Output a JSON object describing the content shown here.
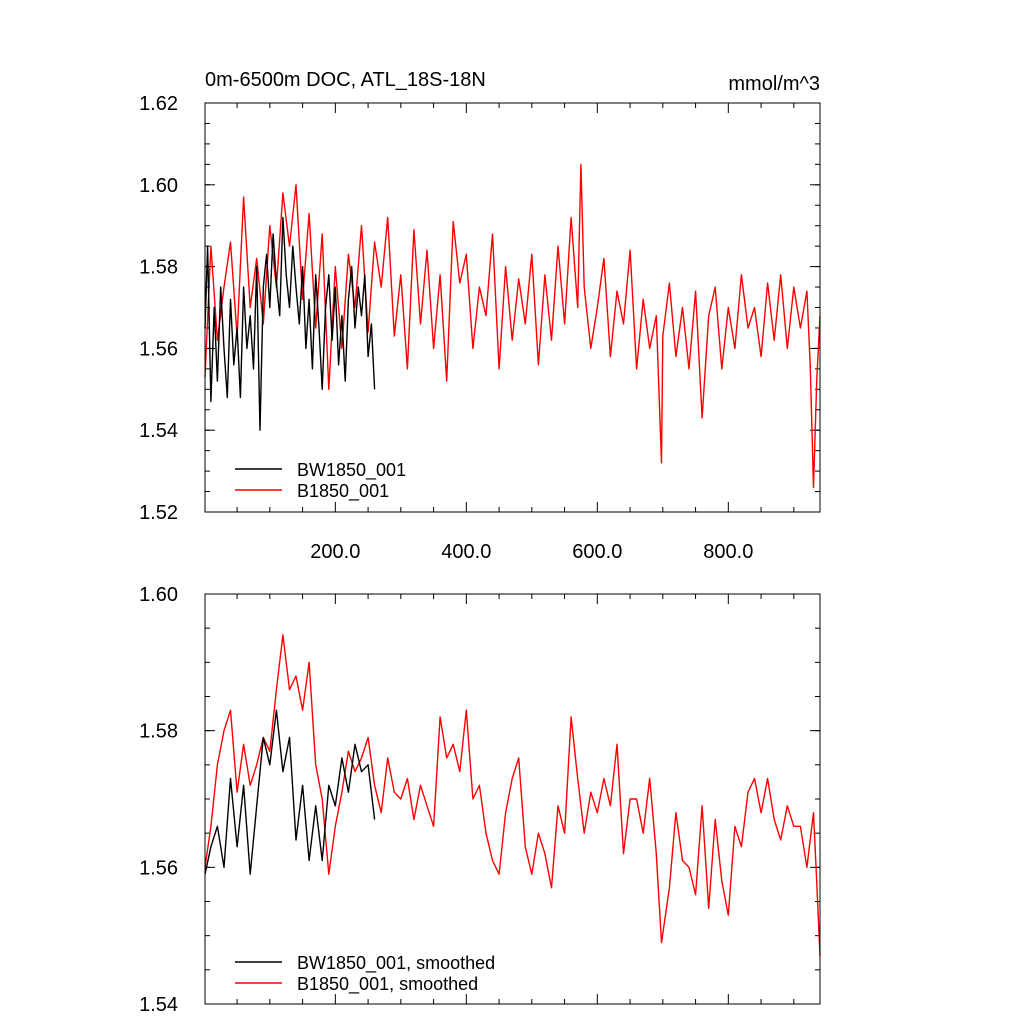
{
  "chart_data": [
    {
      "type": "line",
      "title": "0m-6500m DOC, ATL_18S-18N",
      "units": "mmol/m^3",
      "xlim": [
        1,
        940
      ],
      "ylim": [
        1.52,
        1.62
      ],
      "xticks": [
        200,
        400,
        600,
        800
      ],
      "xtick_labels": [
        "200.0",
        "400.0",
        "600.0",
        "800.0"
      ],
      "yticks": [
        1.52,
        1.54,
        1.56,
        1.58,
        1.6,
        1.62
      ],
      "ytick_labels": [
        "1.52",
        "1.54",
        "1.56",
        "1.58",
        "1.60",
        "1.62"
      ],
      "legend": "bottom-left",
      "series": [
        {
          "name": "BW1850_001",
          "color": "#000000",
          "x": [
            1,
            5,
            10,
            15,
            20,
            25,
            30,
            35,
            40,
            45,
            50,
            55,
            60,
            65,
            70,
            75,
            80,
            85,
            90,
            95,
            100,
            105,
            110,
            115,
            120,
            125,
            130,
            135,
            140,
            145,
            150,
            155,
            160,
            165,
            170,
            175,
            180,
            185,
            190,
            195,
            200,
            205,
            210,
            215,
            220,
            225,
            230,
            235,
            240,
            245,
            250,
            255,
            260
          ],
          "values": [
            1.565,
            1.585,
            1.547,
            1.57,
            1.552,
            1.575,
            1.56,
            1.548,
            1.572,
            1.556,
            1.565,
            1.548,
            1.575,
            1.56,
            1.568,
            1.555,
            1.58,
            1.54,
            1.575,
            1.583,
            1.57,
            1.588,
            1.576,
            1.568,
            1.592,
            1.578,
            1.57,
            1.585,
            1.575,
            1.566,
            1.58,
            1.56,
            1.572,
            1.555,
            1.578,
            1.565,
            1.55,
            1.57,
            1.578,
            1.562,
            1.575,
            1.556,
            1.568,
            1.552,
            1.572,
            1.58,
            1.565,
            1.575,
            1.568,
            1.578,
            1.558,
            1.566,
            1.55
          ]
        },
        {
          "name": "B1850_001",
          "color": "#ff0000",
          "x": [
            1,
            10,
            20,
            30,
            40,
            50,
            60,
            70,
            80,
            90,
            100,
            110,
            120,
            130,
            140,
            150,
            160,
            170,
            180,
            190,
            200,
            210,
            220,
            230,
            240,
            250,
            260,
            270,
            280,
            290,
            300,
            310,
            320,
            330,
            340,
            350,
            360,
            370,
            380,
            390,
            400,
            410,
            420,
            430,
            440,
            450,
            460,
            470,
            480,
            490,
            500,
            510,
            520,
            530,
            540,
            550,
            560,
            570,
            575,
            580,
            590,
            600,
            610,
            620,
            630,
            640,
            650,
            660,
            670,
            680,
            690,
            698,
            700,
            710,
            720,
            730,
            740,
            750,
            760,
            770,
            780,
            790,
            800,
            810,
            820,
            830,
            840,
            850,
            860,
            870,
            880,
            890,
            900,
            910,
            920,
            925,
            930,
            935,
            940
          ],
          "values": [
            1.553,
            1.585,
            1.562,
            1.575,
            1.586,
            1.563,
            1.597,
            1.57,
            1.582,
            1.566,
            1.59,
            1.575,
            1.598,
            1.585,
            1.6,
            1.572,
            1.593,
            1.565,
            1.588,
            1.55,
            1.58,
            1.56,
            1.583,
            1.57,
            1.59,
            1.564,
            1.586,
            1.575,
            1.592,
            1.563,
            1.578,
            1.555,
            1.589,
            1.566,
            1.584,
            1.56,
            1.578,
            1.552,
            1.591,
            1.576,
            1.583,
            1.56,
            1.575,
            1.568,
            1.588,
            1.555,
            1.58,
            1.562,
            1.577,
            1.566,
            1.583,
            1.556,
            1.578,
            1.562,
            1.585,
            1.566,
            1.592,
            1.57,
            1.605,
            1.575,
            1.56,
            1.57,
            1.582,
            1.558,
            1.574,
            1.566,
            1.584,
            1.555,
            1.572,
            1.56,
            1.568,
            1.532,
            1.563,
            1.576,
            1.558,
            1.57,
            1.555,
            1.574,
            1.543,
            1.568,
            1.575,
            1.555,
            1.57,
            1.56,
            1.578,
            1.565,
            1.57,
            1.558,
            1.576,
            1.562,
            1.578,
            1.56,
            1.575,
            1.565,
            1.574,
            1.556,
            1.526,
            1.552,
            1.568
          ]
        }
      ]
    },
    {
      "type": "line",
      "title": "",
      "xlim": [
        1,
        940
      ],
      "ylim": [
        1.54,
        1.6
      ],
      "xticks": [
        200,
        400,
        600,
        800
      ],
      "yticks": [
        1.54,
        1.56,
        1.58,
        1.6
      ],
      "ytick_labels": [
        "1.54",
        "1.56",
        "1.58",
        "1.60"
      ],
      "legend": "bottom-left",
      "series": [
        {
          "name": "BW1850_001, smoothed",
          "color": "#000000",
          "x": [
            1,
            10,
            20,
            30,
            40,
            50,
            60,
            70,
            80,
            90,
            100,
            110,
            120,
            130,
            140,
            150,
            160,
            170,
            180,
            190,
            200,
            210,
            220,
            230,
            240,
            250,
            260
          ],
          "values": [
            1.559,
            1.563,
            1.566,
            1.56,
            1.573,
            1.563,
            1.572,
            1.559,
            1.569,
            1.579,
            1.575,
            1.583,
            1.574,
            1.579,
            1.564,
            1.572,
            1.561,
            1.569,
            1.561,
            1.572,
            1.569,
            1.576,
            1.571,
            1.578,
            1.574,
            1.575,
            1.567
          ]
        },
        {
          "name": "B1850_001, smoothed",
          "color": "#ff0000",
          "x": [
            1,
            10,
            20,
            30,
            40,
            50,
            60,
            70,
            80,
            90,
            100,
            110,
            120,
            130,
            140,
            150,
            160,
            170,
            180,
            190,
            200,
            210,
            220,
            230,
            240,
            250,
            260,
            270,
            280,
            290,
            300,
            310,
            320,
            330,
            340,
            350,
            360,
            370,
            380,
            390,
            400,
            410,
            420,
            430,
            440,
            450,
            460,
            470,
            480,
            490,
            500,
            510,
            520,
            530,
            540,
            550,
            560,
            570,
            580,
            590,
            600,
            610,
            620,
            630,
            640,
            650,
            660,
            670,
            680,
            690,
            698,
            710,
            720,
            730,
            740,
            750,
            760,
            770,
            780,
            790,
            800,
            810,
            820,
            830,
            840,
            850,
            860,
            870,
            880,
            890,
            900,
            910,
            920,
            930,
            935,
            940
          ],
          "values": [
            1.56,
            1.566,
            1.575,
            1.58,
            1.583,
            1.571,
            1.578,
            1.572,
            1.575,
            1.579,
            1.577,
            1.586,
            1.594,
            1.586,
            1.588,
            1.583,
            1.59,
            1.575,
            1.57,
            1.559,
            1.566,
            1.571,
            1.577,
            1.574,
            1.576,
            1.579,
            1.572,
            1.568,
            1.576,
            1.571,
            1.57,
            1.573,
            1.567,
            1.572,
            1.569,
            1.566,
            1.582,
            1.576,
            1.578,
            1.574,
            1.583,
            1.57,
            1.572,
            1.565,
            1.561,
            1.559,
            1.568,
            1.573,
            1.576,
            1.563,
            1.559,
            1.565,
            1.562,
            1.557,
            1.569,
            1.565,
            1.582,
            1.573,
            1.565,
            1.571,
            1.568,
            1.573,
            1.569,
            1.578,
            1.562,
            1.57,
            1.57,
            1.565,
            1.573,
            1.562,
            1.549,
            1.557,
            1.568,
            1.561,
            1.56,
            1.556,
            1.569,
            1.554,
            1.567,
            1.558,
            1.553,
            1.566,
            1.563,
            1.571,
            1.573,
            1.568,
            1.573,
            1.567,
            1.564,
            1.569,
            1.566,
            1.566,
            1.56,
            1.568,
            1.558,
            1.547
          ]
        }
      ]
    }
  ]
}
